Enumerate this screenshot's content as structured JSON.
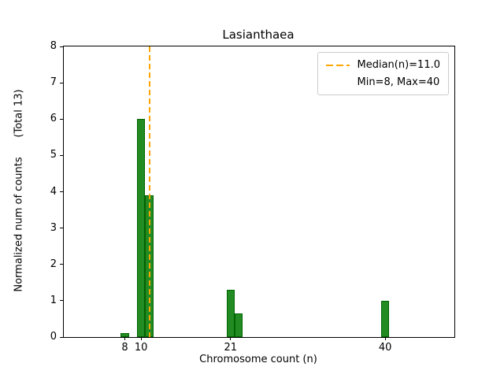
{
  "chart_data": {
    "type": "bar",
    "title": "Lasianthaea",
    "xlabel": "Chromosome count (n)",
    "ylabel": "Normalized num of counts      (Total 13)",
    "xlim": [
      0.5,
      48.5
    ],
    "ylim": [
      0,
      8
    ],
    "x_ticks": [
      8,
      10,
      21,
      40
    ],
    "y_ticks": [
      0,
      1,
      2,
      3,
      4,
      5,
      6,
      7,
      8
    ],
    "grid": false,
    "bar_width": 1,
    "bar_fill_color": "#228B22",
    "bar_edge_color": "#006400",
    "bars": [
      {
        "x": 8,
        "height": 0.1
      },
      {
        "x": 10,
        "height": 6.0
      },
      {
        "x": 11,
        "height": 3.9
      },
      {
        "x": 21,
        "height": 1.3
      },
      {
        "x": 22,
        "height": 0.65
      },
      {
        "x": 40,
        "height": 1.0
      }
    ],
    "median_line": {
      "x": 11.0,
      "color": "#FFA500",
      "style": "dashed"
    },
    "legend": {
      "position": "top-right",
      "items": [
        {
          "label": "Median(n)=11.0",
          "sample_color": "#FFA500",
          "sample_style": "dashed"
        },
        {
          "label": "Min=8, Max=40",
          "sample_color": null,
          "sample_style": "none"
        }
      ]
    }
  }
}
